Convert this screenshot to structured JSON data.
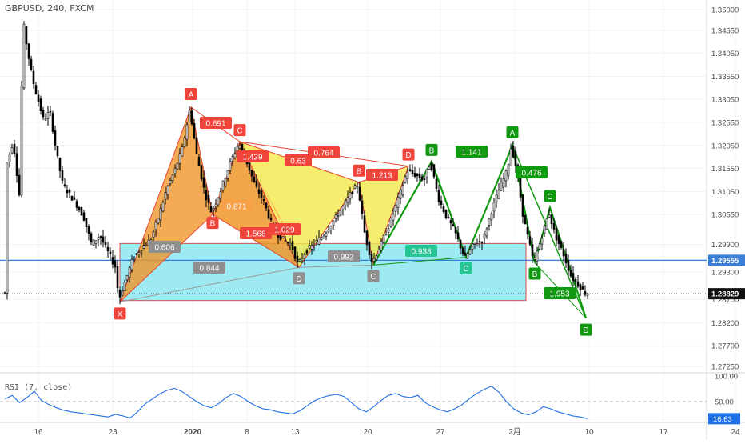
{
  "header": {
    "symbol": "GBPUSD",
    "interval": "240",
    "exchange": "FXCM"
  },
  "rsi_panel": {
    "label": "RSI (7, close)"
  },
  "colors": {
    "candle": "#000000",
    "bearish_fill": "#f0962a",
    "bearish_line": "#e8432e",
    "overlap_fill": "#f4e94a",
    "bullish_line": "#119a11",
    "zone_fill": "#7ee3ef",
    "zone_border": "#d25050",
    "price_line": "#3a7fd5",
    "rsi_line": "#1f6fe5",
    "tag_red": "#f0433a",
    "tag_grey": "#8f8f8f",
    "tag_teal": "#27c495",
    "tag_orange": "#f7a048"
  },
  "chart_data": {
    "type": "candlestick",
    "price_axis": {
      "ticks": [
        "1.35000",
        "1.34550",
        "1.34050",
        "1.33550",
        "1.33050",
        "1.32550",
        "1.32050",
        "1.31550",
        "1.31050",
        "1.30550",
        "1.29900",
        "1.29300",
        "1.28700",
        "1.28200",
        "1.27700",
        "1.27250"
      ],
      "range": [
        1.2705,
        1.351
      ]
    },
    "time_axis": {
      "ticks": [
        "16",
        "23",
        "2020",
        "8",
        "13",
        "20",
        "27",
        "2月",
        "10",
        "17",
        "24"
      ]
    },
    "current_price": {
      "label": "1.28829",
      "value": 1.28829
    },
    "horizontal_line": {
      "label": "1.29555",
      "value": 1.29555
    },
    "zone": {
      "from": 1.2868,
      "to": 1.2992
    },
    "pattern_points": [
      {
        "label": "X",
        "price": 1.2865
      },
      {
        "label": "A",
        "price": 1.3288
      },
      {
        "label": "B",
        "price": 1.3055
      },
      {
        "label": "C",
        "price": 1.3213
      },
      {
        "label": "D",
        "price": 1.294
      },
      {
        "label": "B",
        "price": 1.3125
      },
      {
        "label": "C",
        "price": 1.2945
      },
      {
        "label": "D",
        "price": 1.316
      },
      {
        "label": "B",
        "price": 1.317
      },
      {
        "label": "C",
        "price": 1.2962
      },
      {
        "label": "A",
        "price": 1.3205
      },
      {
        "label": "C",
        "price": 1.307
      },
      {
        "label": "B",
        "price": 1.295
      },
      {
        "label": "D",
        "price": 1.283
      }
    ],
    "ratio_labels": [
      "0.691",
      "0.764",
      "0.63",
      "1.213",
      "1.141",
      "0.476",
      "1.429",
      "0.871",
      "1.568",
      "1.029",
      "0.606",
      "0.844",
      "0.992",
      "0.938",
      "1.953"
    ],
    "rsi": {
      "name": "RSI (7, close)",
      "axis_ticks": [
        "100.00",
        "50.00"
      ],
      "range": [
        0,
        100
      ],
      "current": "16.63"
    }
  }
}
